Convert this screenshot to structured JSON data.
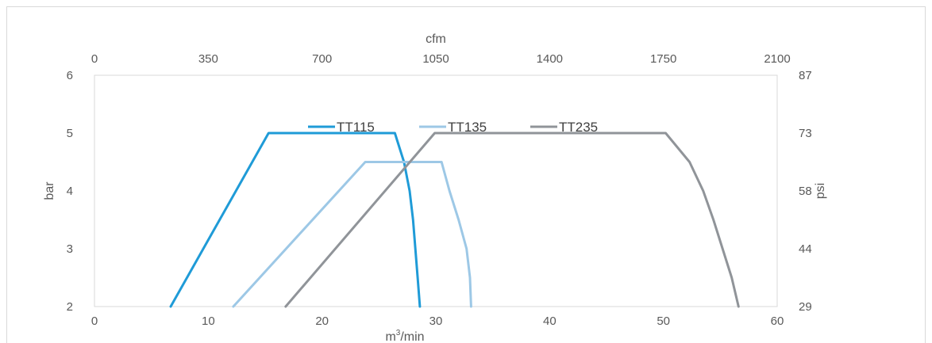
{
  "chart_data": {
    "type": "line",
    "title": "",
    "xlabel": "m³/min",
    "xlabel_base": "m",
    "xlabel_sup": "3",
    "xlabel_rest": "/min",
    "ylabel": "bar",
    "x2label": "cfm",
    "y2label": "psi",
    "xlim": [
      0,
      60
    ],
    "ylim": [
      2,
      6
    ],
    "x_ticks": [
      "0",
      "10",
      "20",
      "30",
      "40",
      "50",
      "60"
    ],
    "y_ticks": [
      "2",
      "3",
      "4",
      "5",
      "6"
    ],
    "x2_ticks": [
      "0",
      "350",
      "700",
      "1050",
      "1400",
      "1750",
      "2100"
    ],
    "y2_ticks": [
      "29",
      "44",
      "58",
      "73",
      "87"
    ],
    "grid": false,
    "legend_position": "top-center",
    "series": [
      {
        "name": "TT115",
        "color": "#1f9bd7",
        "points": [
          [
            6.7,
            2.0
          ],
          [
            15.3,
            5.0
          ],
          [
            26.4,
            5.0
          ],
          [
            27.2,
            4.5
          ],
          [
            27.7,
            4.0
          ],
          [
            28.0,
            3.5
          ],
          [
            28.2,
            3.0
          ],
          [
            28.4,
            2.5
          ],
          [
            28.6,
            2.0
          ]
        ]
      },
      {
        "name": "TT135",
        "color": "#9dc8e6",
        "points": [
          [
            12.2,
            2.0
          ],
          [
            23.8,
            4.5
          ],
          [
            30.5,
            4.5
          ],
          [
            31.2,
            4.0
          ],
          [
            32.0,
            3.5
          ],
          [
            32.7,
            3.0
          ],
          [
            33.0,
            2.5
          ],
          [
            33.1,
            2.0
          ]
        ]
      },
      {
        "name": "TT235",
        "color": "#909499",
        "points": [
          [
            16.8,
            2.0
          ],
          [
            29.9,
            5.0
          ],
          [
            50.2,
            5.0
          ],
          [
            52.3,
            4.5
          ],
          [
            53.5,
            4.0
          ],
          [
            54.4,
            3.5
          ],
          [
            55.2,
            3.0
          ],
          [
            56.0,
            2.5
          ],
          [
            56.6,
            2.0
          ]
        ]
      }
    ]
  }
}
